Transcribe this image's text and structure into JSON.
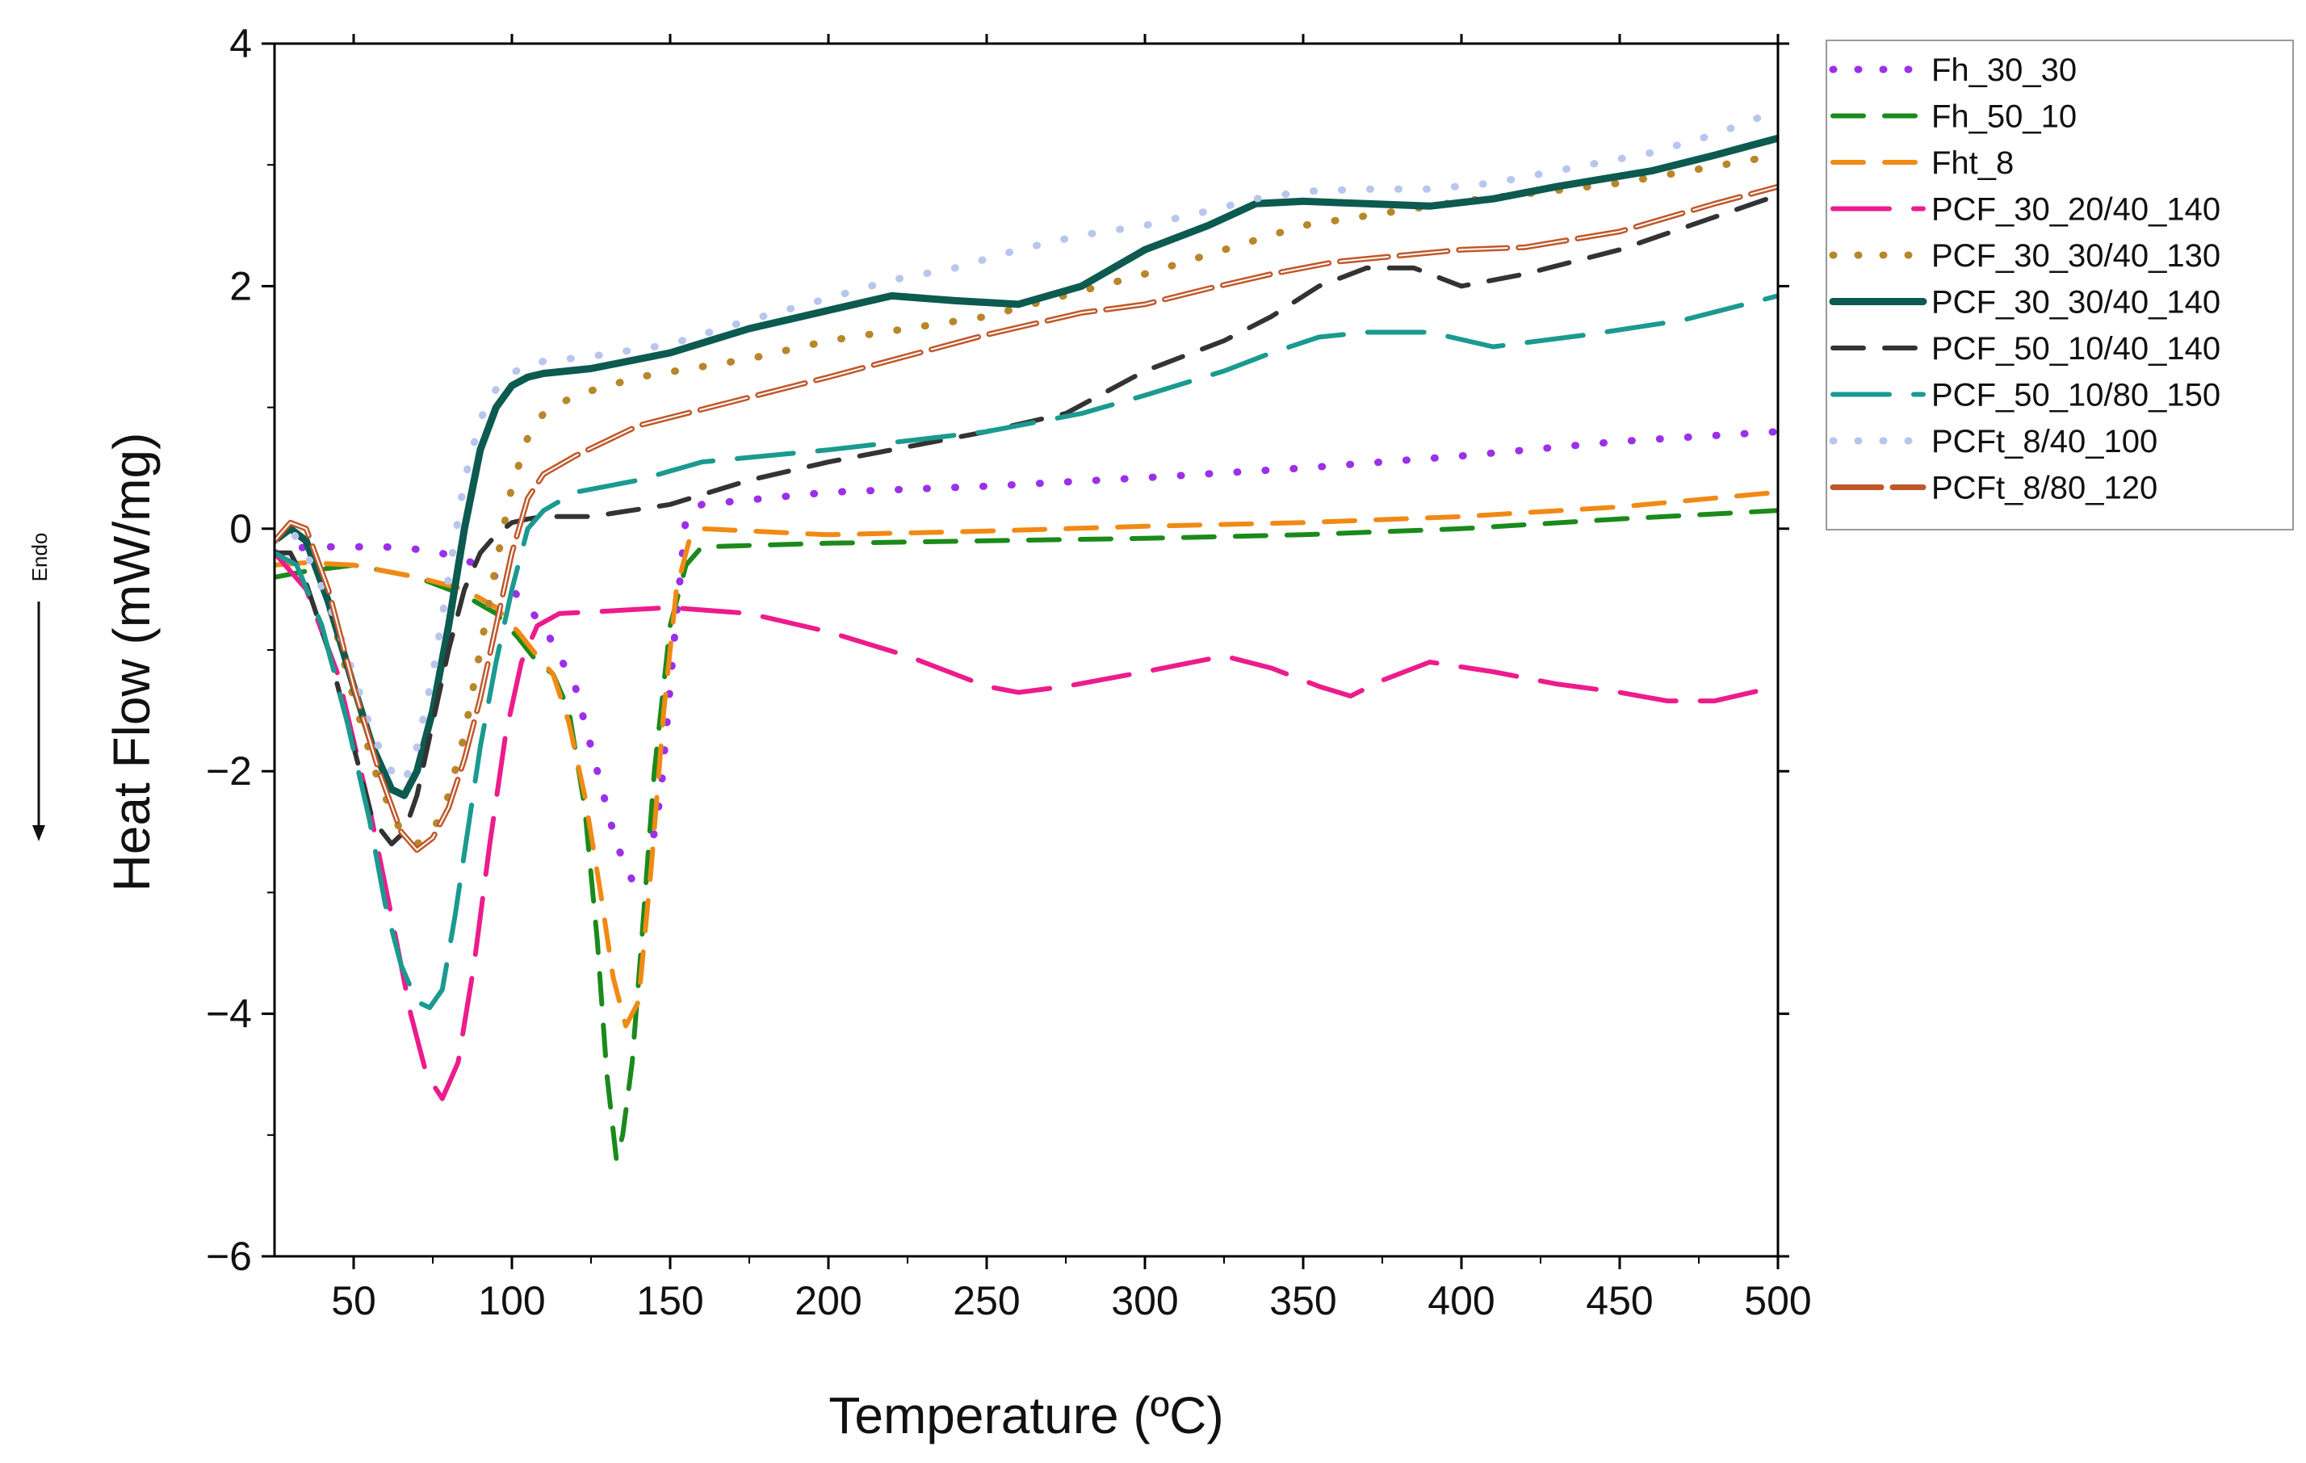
{
  "chart_data": {
    "type": "line",
    "xlabel": "Temperature (ºC)",
    "ylabel": "Heat Flow (mW/mg)",
    "annotation": "Endo",
    "xlim": [
      25,
      500
    ],
    "ylim": [
      -6,
      4
    ],
    "xticks": [
      50,
      100,
      150,
      200,
      250,
      300,
      350,
      400,
      450,
      500
    ],
    "yticks": [
      -6,
      -4,
      -2,
      0,
      2,
      4
    ],
    "xtick_labels": [
      "50",
      "100",
      "150",
      "200",
      "250",
      "300",
      "350",
      "400",
      "450",
      "500"
    ],
    "ytick_labels": [
      "−6",
      "−4",
      "−2",
      "0",
      "2",
      "4"
    ],
    "legend_position": "top-right outside",
    "series": [
      {
        "name": "Fh_30_30",
        "color": "#9b30e8",
        "style": "dot",
        "x": [
          25,
          35,
          45,
          60,
          75,
          90,
          100,
          110,
          120,
          127,
          133,
          138,
          143,
          147,
          151,
          155,
          160,
          200,
          250,
          300,
          350,
          400,
          450,
          500
        ],
        "y": [
          -0.2,
          -0.15,
          -0.15,
          -0.15,
          -0.18,
          -0.3,
          -0.5,
          -0.8,
          -1.3,
          -2.0,
          -2.6,
          -2.9,
          -2.8,
          -2.2,
          -1.0,
          0.1,
          0.2,
          0.3,
          0.35,
          0.42,
          0.5,
          0.6,
          0.72,
          0.8
        ]
      },
      {
        "name": "Fh_50_10",
        "color": "#1b8a1b",
        "style": "dash",
        "x": [
          25,
          35,
          50,
          70,
          85,
          95,
          102,
          108,
          113,
          118,
          123,
          127,
          130,
          133,
          135,
          138,
          141,
          145,
          150,
          155,
          160,
          200,
          250,
          300,
          350,
          400,
          450,
          500
        ],
        "y": [
          -0.4,
          -0.35,
          -0.3,
          -0.4,
          -0.55,
          -0.7,
          -0.9,
          -1.1,
          -1.2,
          -1.5,
          -2.3,
          -3.4,
          -4.5,
          -5.2,
          -5.0,
          -4.4,
          -3.4,
          -2.0,
          -0.8,
          -0.3,
          -0.15,
          -0.12,
          -0.1,
          -0.08,
          -0.05,
          0.0,
          0.08,
          0.15
        ]
      },
      {
        "name": "Fht_8",
        "color": "#f08a14",
        "style": "dash",
        "x": [
          25,
          35,
          50,
          70,
          85,
          95,
          102,
          108,
          113,
          118,
          123,
          128,
          132,
          136,
          140,
          144,
          148,
          152,
          156,
          160,
          200,
          250,
          300,
          350,
          400,
          450,
          500
        ],
        "y": [
          -0.3,
          -0.28,
          -0.3,
          -0.4,
          -0.5,
          -0.65,
          -0.85,
          -1.05,
          -1.2,
          -1.6,
          -2.2,
          -3.0,
          -3.7,
          -4.1,
          -3.9,
          -2.8,
          -1.5,
          -0.5,
          -0.1,
          0.0,
          -0.05,
          -0.02,
          0.02,
          0.05,
          0.1,
          0.18,
          0.3
        ]
      },
      {
        "name": "PCF_30_20/40_140",
        "color": "#ec1c8c",
        "style": "longdash",
        "x": [
          25,
          35,
          45,
          55,
          62,
          68,
          73,
          78,
          83,
          88,
          93,
          98,
          103,
          108,
          115,
          130,
          150,
          175,
          200,
          225,
          250,
          260,
          275,
          300,
          325,
          340,
          355,
          365,
          375,
          390,
          410,
          430,
          450,
          465,
          480,
          500
        ],
        "y": [
          -0.2,
          -0.5,
          -1.2,
          -2.3,
          -3.2,
          -4.0,
          -4.5,
          -4.7,
          -4.4,
          -3.6,
          -2.6,
          -1.7,
          -1.1,
          -0.8,
          -0.7,
          -0.68,
          -0.65,
          -0.7,
          -0.85,
          -1.05,
          -1.3,
          -1.35,
          -1.3,
          -1.18,
          -1.05,
          -1.15,
          -1.3,
          -1.38,
          -1.25,
          -1.1,
          -1.18,
          -1.28,
          -1.35,
          -1.42,
          -1.42,
          -1.3
        ]
      },
      {
        "name": "PCF_30_30/40_130",
        "color": "#b8862b",
        "style": "dot",
        "x": [
          25,
          30,
          35,
          42,
          50,
          58,
          65,
          70,
          75,
          80,
          85,
          90,
          95,
          100,
          105,
          110,
          120,
          140,
          175,
          200,
          250,
          300,
          350,
          400,
          450,
          500
        ],
        "y": [
          -0.1,
          0.0,
          -0.1,
          -0.6,
          -1.4,
          -2.1,
          -2.5,
          -2.6,
          -2.5,
          -2.2,
          -1.7,
          -1.0,
          -0.3,
          0.35,
          0.75,
          0.95,
          1.1,
          1.25,
          1.4,
          1.55,
          1.75,
          2.1,
          2.5,
          2.7,
          2.85,
          3.08
        ]
      },
      {
        "name": "PCF_30_30/40_140",
        "color": "#0c5a50",
        "style": "solid",
        "x": [
          25,
          30,
          35,
          42,
          50,
          56,
          62,
          66,
          70,
          75,
          80,
          85,
          90,
          95,
          100,
          105,
          110,
          125,
          150,
          175,
          200,
          220,
          240,
          260,
          280,
          300,
          320,
          335,
          350,
          370,
          390,
          410,
          430,
          460,
          480,
          500
        ],
        "y": [
          -0.1,
          0.0,
          -0.1,
          -0.6,
          -1.3,
          -1.8,
          -2.15,
          -2.2,
          -2.0,
          -1.5,
          -0.8,
          0.0,
          0.65,
          1.0,
          1.18,
          1.25,
          1.28,
          1.32,
          1.45,
          1.65,
          1.8,
          1.92,
          1.88,
          1.85,
          2.0,
          2.3,
          2.5,
          2.68,
          2.7,
          2.68,
          2.66,
          2.72,
          2.82,
          2.95,
          3.08,
          3.22
        ]
      },
      {
        "name": "PCF_50_10/40_140",
        "color": "#333333",
        "style": "dash",
        "x": [
          25,
          30,
          35,
          42,
          50,
          56,
          62,
          66,
          70,
          75,
          80,
          85,
          90,
          95,
          100,
          105,
          110,
          125,
          150,
          175,
          200,
          250,
          275,
          300,
          325,
          340,
          355,
          370,
          385,
          400,
          420,
          450,
          500
        ],
        "y": [
          -0.2,
          -0.2,
          -0.45,
          -1.0,
          -1.8,
          -2.4,
          -2.6,
          -2.5,
          -2.2,
          -1.6,
          -1.0,
          -0.5,
          -0.2,
          -0.05,
          0.05,
          0.08,
          0.1,
          0.1,
          0.2,
          0.4,
          0.55,
          0.8,
          0.95,
          1.3,
          1.55,
          1.75,
          2.0,
          2.15,
          2.15,
          2.0,
          2.1,
          2.3,
          2.75
        ]
      },
      {
        "name": "PCF_50_10/80_150",
        "color": "#1a9a90",
        "style": "longdash",
        "x": [
          25,
          32,
          40,
          48,
          55,
          60,
          65,
          70,
          74,
          78,
          82,
          86,
          90,
          95,
          100,
          105,
          110,
          120,
          140,
          160,
          200,
          250,
          280,
          300,
          325,
          340,
          355,
          370,
          390,
          410,
          440,
          470,
          500
        ],
        "y": [
          -0.2,
          -0.3,
          -0.8,
          -1.6,
          -2.4,
          -3.1,
          -3.6,
          -3.9,
          -3.95,
          -3.8,
          -3.2,
          -2.5,
          -1.8,
          -1.1,
          -0.5,
          0.0,
          0.15,
          0.3,
          0.4,
          0.55,
          0.65,
          0.8,
          0.95,
          1.1,
          1.3,
          1.45,
          1.58,
          1.62,
          1.62,
          1.5,
          1.6,
          1.72,
          1.92
        ]
      },
      {
        "name": "PCFt_8/40_100",
        "color": "#b8c6ee",
        "style": "dot",
        "x": [
          25,
          30,
          35,
          42,
          50,
          56,
          62,
          66,
          70,
          75,
          80,
          85,
          90,
          95,
          100,
          105,
          110,
          125,
          150,
          175,
          200,
          220,
          240,
          260,
          280,
          300,
          320,
          335,
          350,
          370,
          390,
          410,
          430,
          460,
          480,
          500
        ],
        "y": [
          -0.1,
          0.0,
          -0.2,
          -0.6,
          -1.2,
          -1.7,
          -2.0,
          -2.1,
          -1.8,
          -1.2,
          -0.4,
          0.4,
          0.9,
          1.15,
          1.28,
          1.35,
          1.38,
          1.42,
          1.52,
          1.72,
          1.9,
          2.05,
          2.15,
          2.3,
          2.42,
          2.5,
          2.62,
          2.72,
          2.78,
          2.8,
          2.8,
          2.85,
          2.95,
          3.1,
          3.25,
          3.45
        ]
      },
      {
        "name": "PCFt_8/80_120",
        "color": "#c0582a",
        "style": "double",
        "x": [
          25,
          30,
          35,
          42,
          50,
          58,
          65,
          70,
          75,
          80,
          85,
          90,
          95,
          100,
          105,
          110,
          120,
          140,
          170,
          200,
          250,
          280,
          300,
          320,
          340,
          360,
          380,
          400,
          420,
          450,
          480,
          500
        ],
        "y": [
          -0.1,
          0.05,
          0.0,
          -0.5,
          -1.3,
          -2.0,
          -2.5,
          -2.65,
          -2.55,
          -2.3,
          -1.9,
          -1.4,
          -0.8,
          -0.2,
          0.25,
          0.45,
          0.6,
          0.85,
          1.05,
          1.25,
          1.6,
          1.78,
          1.85,
          1.98,
          2.1,
          2.2,
          2.25,
          2.3,
          2.32,
          2.45,
          2.68,
          2.82
        ]
      }
    ]
  }
}
